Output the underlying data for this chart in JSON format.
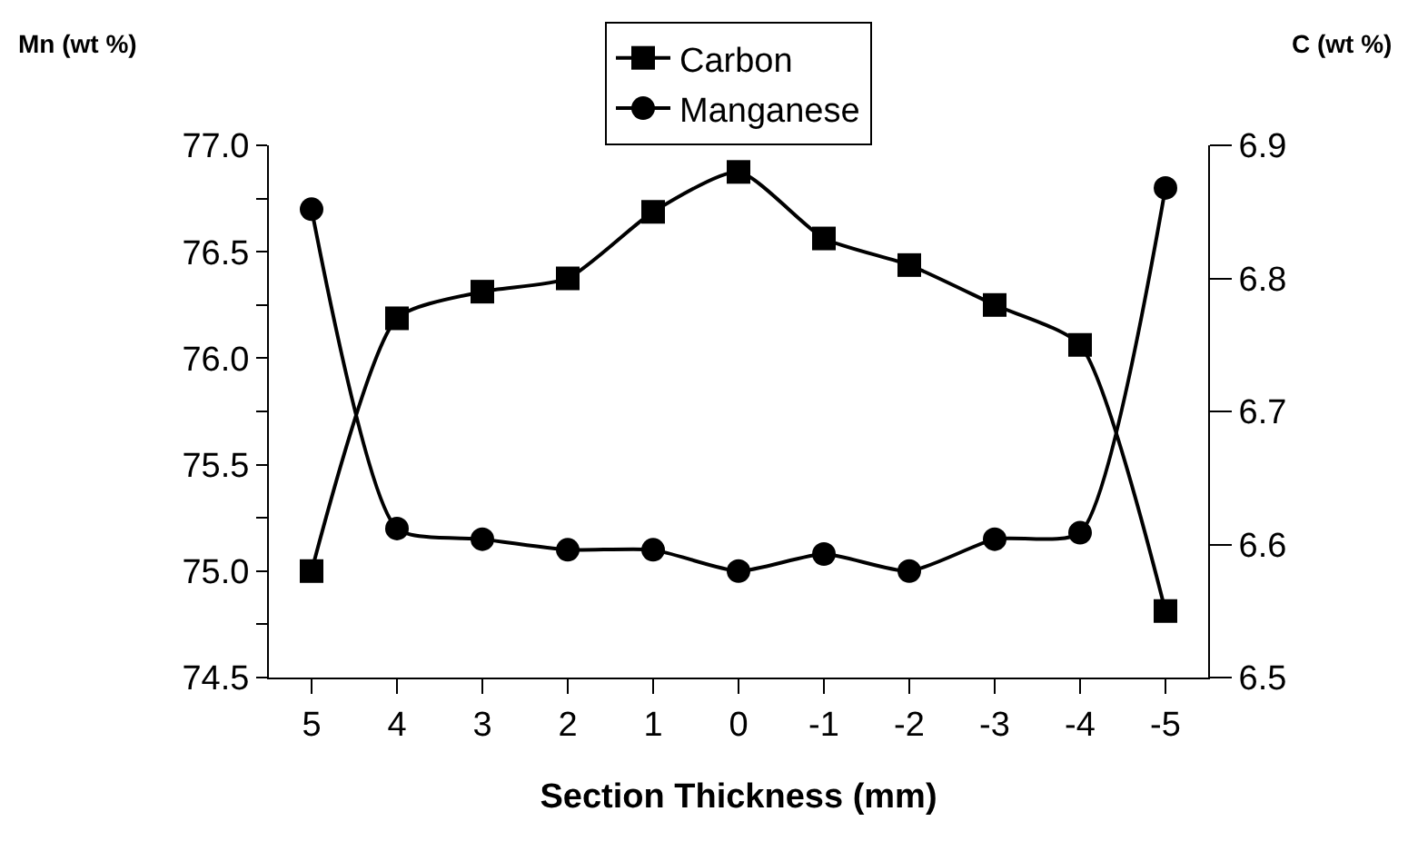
{
  "chart_data": {
    "type": "line",
    "xlabel": "Section Thickness (mm)",
    "ylabel": "Mn (wt %)",
    "y2label": "C (wt %)",
    "categories": [
      "5",
      "4",
      "3",
      "2",
      "1",
      "0",
      "-1",
      "-2",
      "-3",
      "-4",
      "-5"
    ],
    "series": [
      {
        "name": "Carbon",
        "color": "#000000",
        "marker": "square",
        "axis": "y2",
        "values": [
          6.58,
          6.77,
          6.79,
          6.8,
          6.85,
          6.88,
          6.83,
          6.81,
          6.78,
          6.75,
          6.55
        ]
      },
      {
        "name": "Manganese",
        "color": "#000000",
        "marker": "circle",
        "values": [
          76.7,
          75.2,
          75.15,
          75.1,
          75.1,
          75.0,
          75.08,
          75.0,
          75.15,
          75.18,
          76.8
        ]
      }
    ],
    "ylim": [
      74.5,
      77.0
    ],
    "yticks": [
      {
        "value": 74.5,
        "label": "74.5"
      },
      {
        "value": 74.75,
        "label": null
      },
      {
        "value": 75.0,
        "label": "75.0"
      },
      {
        "value": 75.25,
        "label": null
      },
      {
        "value": 75.5,
        "label": "75.5"
      },
      {
        "value": 75.75,
        "label": null
      },
      {
        "value": 76.0,
        "label": "76.0"
      },
      {
        "value": 76.25,
        "label": null
      },
      {
        "value": 76.5,
        "label": "76.5"
      },
      {
        "value": 76.75,
        "label": null
      },
      {
        "value": 77.0,
        "label": "77.0"
      }
    ],
    "y2lim": [
      6.5,
      6.9
    ],
    "y2ticks": [
      6.5,
      6.6,
      6.7,
      6.8,
      6.9
    ],
    "legend": "top",
    "line_style": "solid"
  }
}
